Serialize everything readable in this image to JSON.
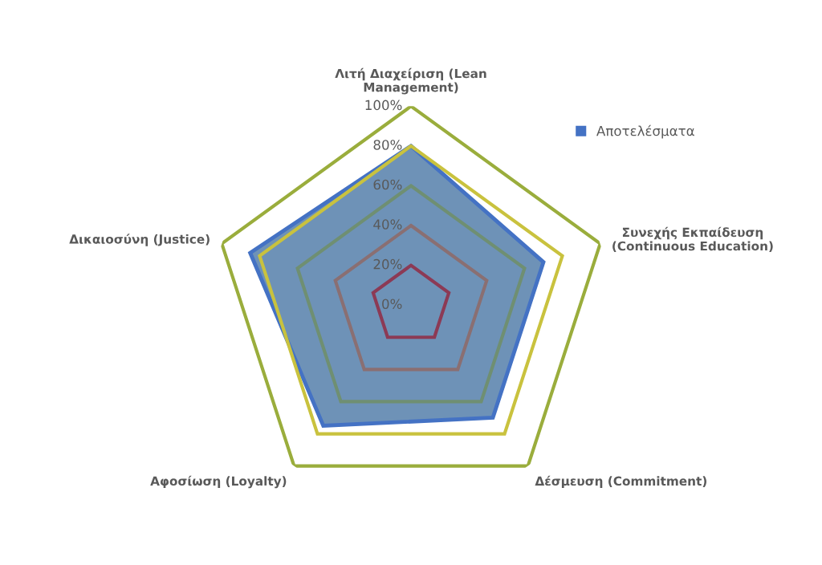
{
  "chart_data": {
    "type": "radar",
    "categories": [
      "Λιτή Διαχείριση (Lean Management)",
      "Συνεχής Εκπαίδευση (Continuous Education)",
      "Δέσμευση (Commitment)",
      "Αφοσίωση (Loyalty)",
      "Δικαιοσύνη (Justice)"
    ],
    "series": [
      {
        "name": "Αποτελέσματα",
        "color": "#4472c4",
        "values": [
          0.8,
          0.7,
          0.7,
          0.75,
          0.85
        ]
      }
    ],
    "ylim": [
      0,
      1
    ],
    "yticks": [
      {
        "value": 0,
        "label": "0%"
      },
      {
        "value": 0.2,
        "label": "20%"
      },
      {
        "value": 0.4,
        "label": "40%"
      },
      {
        "value": 0.6,
        "label": "60%"
      },
      {
        "value": 0.8,
        "label": "80%"
      },
      {
        "value": 1,
        "label": "100%"
      }
    ],
    "grid": true,
    "legend": "top right"
  }
}
